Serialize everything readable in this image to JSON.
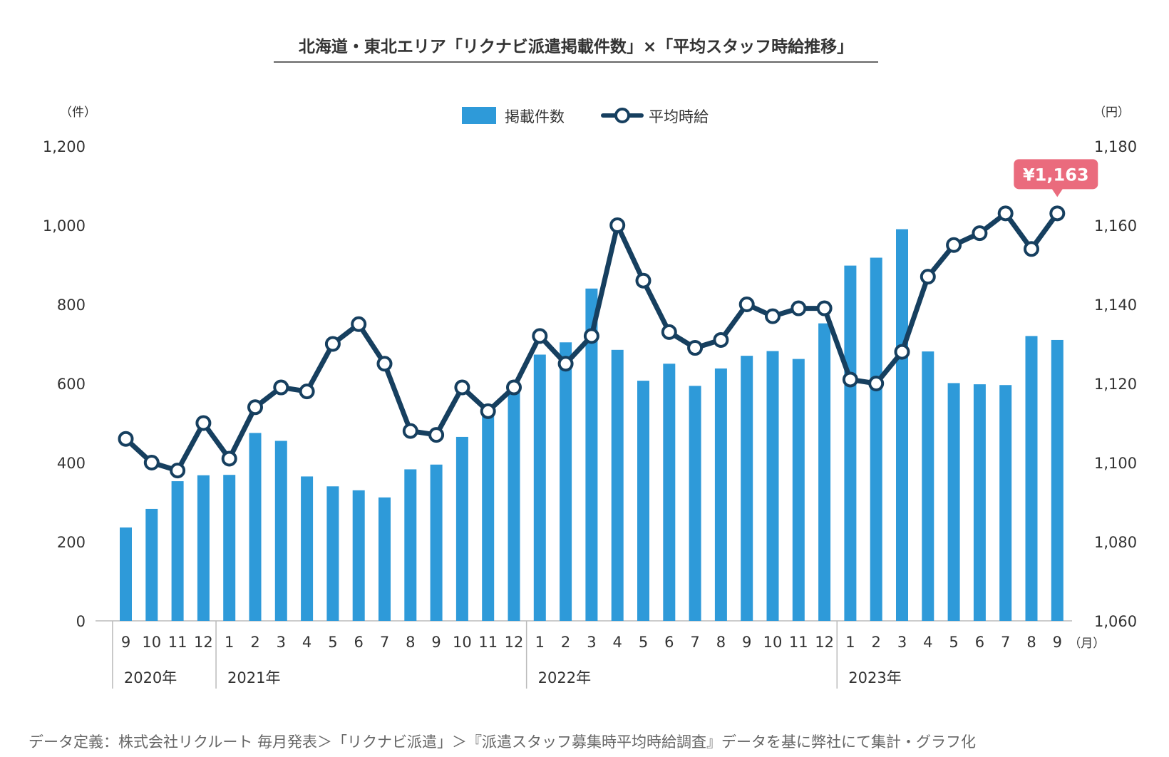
{
  "chart_data": {
    "type": "bar",
    "title": "北海道・東北エリア「リクナビ派遣掲載件数」×「平均スタッフ時給推移」",
    "left_unit": "（件）",
    "right_unit": "（円）",
    "month_unit": "（月）",
    "categories": [
      "9",
      "10",
      "11",
      "12",
      "1",
      "2",
      "3",
      "4",
      "5",
      "6",
      "7",
      "8",
      "9",
      "10",
      "11",
      "12",
      "1",
      "2",
      "3",
      "4",
      "5",
      "6",
      "7",
      "8",
      "9",
      "10",
      "11",
      "12",
      "1",
      "2",
      "3",
      "4",
      "5",
      "6",
      "7",
      "8",
      "9"
    ],
    "years": [
      {
        "label": "2020年",
        "start": 0,
        "end": 3
      },
      {
        "label": "2021年",
        "start": 4,
        "end": 15
      },
      {
        "label": "2022年",
        "start": 16,
        "end": 27
      },
      {
        "label": "2023年",
        "start": 28,
        "end": 36
      }
    ],
    "yleft_ticks": [
      "0",
      "200",
      "400",
      "600",
      "800",
      "1,000",
      "1,200"
    ],
    "yright_ticks": [
      "1,060",
      "1,080",
      "1,100",
      "1,120",
      "1,140",
      "1,160",
      "1,180"
    ],
    "ylim_left": [
      0,
      1200
    ],
    "ylim_right": [
      1060,
      1180
    ],
    "series": [
      {
        "name": "掲載件数",
        "type": "bar",
        "axis": "left",
        "color": "#2e9ad9",
        "values": [
          236,
          283,
          353,
          368,
          369,
          475,
          455,
          365,
          340,
          330,
          312,
          383,
          395,
          465,
          522,
          578,
          673,
          704,
          840,
          685,
          607,
          650,
          594,
          638,
          670,
          682,
          662,
          752,
          898,
          918,
          990,
          681,
          601,
          598,
          596,
          720,
          710
        ]
      },
      {
        "name": "平均時給",
        "type": "line",
        "axis": "right",
        "color": "#163f5f",
        "values": [
          1106,
          1100,
          1098,
          1110,
          1101,
          1114,
          1119,
          1118,
          1130,
          1135,
          1125,
          1108,
          1107,
          1119,
          1113,
          1119,
          1132,
          1125,
          1132,
          1160,
          1146,
          1133,
          1129,
          1131,
          1140,
          1137,
          1139,
          1139,
          1121,
          1120,
          1128,
          1147,
          1155,
          1158,
          1163,
          1154,
          1163
        ]
      }
    ],
    "legend_position": "top-center",
    "callout": {
      "text": "¥1,163",
      "index": 36,
      "color": "#ea6b7d"
    },
    "footnote": "データ定義：株式会社リクルート 毎月発表＞「リクナビ派遣」＞『派遣スタッフ募集時平均時給調査』データを基に弊社にて集計・グラフ化"
  }
}
